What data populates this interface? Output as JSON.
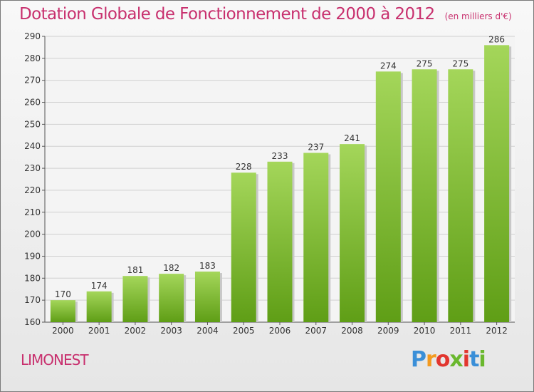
{
  "title": "Dotation Globale de Fonctionnement de 2000 à 2012",
  "subtitle": "(en milliers d'€)",
  "town": "LIMONEST",
  "logo": {
    "letters": [
      "P",
      "r",
      "o",
      "x",
      "i",
      "t",
      "i"
    ],
    "colors": [
      "#3a8fd8",
      "#f39a1f",
      "#e2362f",
      "#6ab82e",
      "#e2362f",
      "#3a8fd8",
      "#6ab82e"
    ]
  },
  "colors": {
    "bar_top": "#a4d65a",
    "bar_bottom": "#5f9e16",
    "title": "#c8306e"
  },
  "chart_data": {
    "type": "bar",
    "title": "Dotation Globale de Fonctionnement de 2000 à 2012",
    "subtitle": "(en milliers d'€)",
    "categories": [
      "2000",
      "2001",
      "2002",
      "2003",
      "2004",
      "2005",
      "2006",
      "2007",
      "2008",
      "2009",
      "2010",
      "2011",
      "2012"
    ],
    "values": [
      170,
      174,
      181,
      182,
      183,
      228,
      233,
      237,
      241,
      274,
      275,
      275,
      286
    ],
    "ylim": [
      160,
      290
    ],
    "yticks": [
      160,
      170,
      180,
      190,
      200,
      210,
      220,
      230,
      240,
      250,
      260,
      270,
      280,
      290
    ],
    "grid": true,
    "xlabel": "",
    "ylabel": ""
  }
}
